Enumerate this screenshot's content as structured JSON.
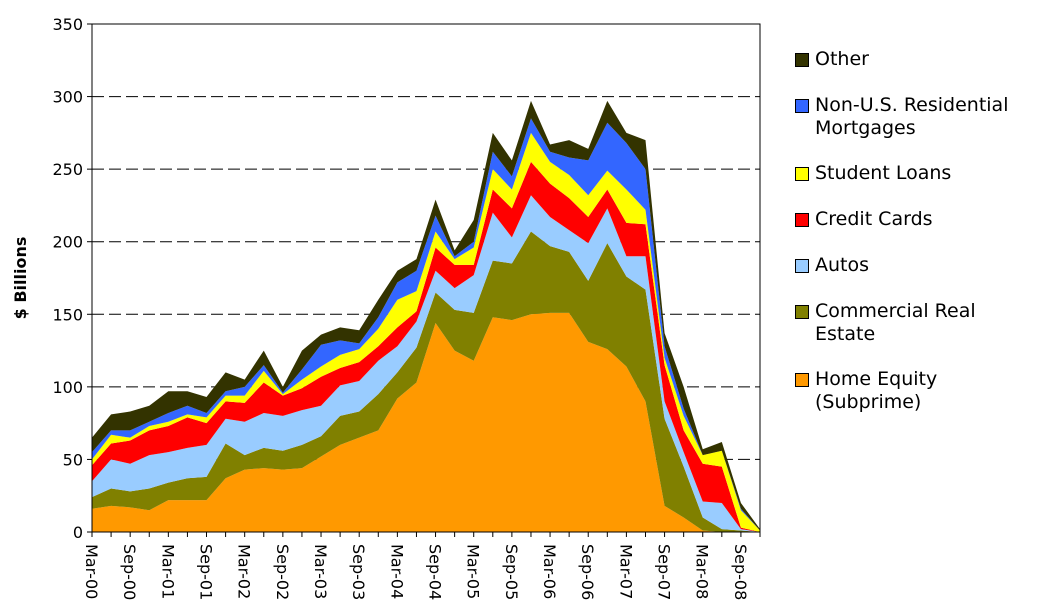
{
  "chart_data": {
    "type": "stacked-area",
    "y_label": "$ Billions",
    "categories": [
      "Mar-00",
      null,
      "Sep-00",
      null,
      "Mar-01",
      null,
      "Sep-01",
      null,
      "Mar-02",
      null,
      "Sep-02",
      null,
      "Mar-03",
      null,
      "Sep-03",
      null,
      "Mar-04",
      null,
      "Sep-04",
      null,
      "Mar-05",
      null,
      "Sep-05",
      null,
      "Mar-06",
      null,
      "Sep-06",
      null,
      "Mar-07",
      null,
      "Sep-07",
      null,
      "Mar-08",
      null,
      "Sep-08",
      null
    ],
    "ylim": [
      0,
      350
    ],
    "yticks": [
      0,
      50,
      100,
      150,
      200,
      250,
      300,
      350
    ],
    "grid": true,
    "legend": "right",
    "series": [
      {
        "name": "Home Equity (Subprime)",
        "color": "#ff9900",
        "values": [
          16,
          18,
          17,
          15,
          22,
          22,
          22,
          37,
          43,
          44,
          43,
          44,
          52,
          60,
          65,
          70,
          92,
          103,
          144,
          125,
          118,
          148,
          146,
          150,
          151,
          151,
          131,
          126,
          114,
          90,
          18,
          10,
          1,
          0,
          0,
          0
        ]
      },
      {
        "name": "Commercial Real Estate",
        "color": "#808000",
        "values": [
          8,
          12,
          11,
          15,
          12,
          15,
          16,
          24,
          10,
          14,
          13,
          16,
          14,
          20,
          18,
          25,
          18,
          24,
          21,
          28,
          33,
          39,
          39,
          57,
          46,
          42,
          42,
          73,
          62,
          77,
          60,
          35,
          9,
          2,
          1,
          0
        ]
      },
      {
        "name": "Autos",
        "color": "#99ccff",
        "values": [
          11,
          20,
          19,
          23,
          21,
          21,
          22,
          17,
          23,
          24,
          24,
          24,
          21,
          21,
          21,
          23,
          18,
          18,
          15,
          15,
          26,
          33,
          18,
          25,
          20,
          15,
          26,
          24,
          14,
          23,
          12,
          10,
          11,
          18,
          1,
          0
        ]
      },
      {
        "name": "Credit Cards",
        "color": "#ff0000",
        "values": [
          11,
          11,
          16,
          17,
          18,
          21,
          15,
          12,
          13,
          21,
          14,
          15,
          20,
          12,
          13,
          10,
          13,
          7,
          16,
          16,
          7,
          16,
          20,
          23,
          23,
          22,
          18,
          13,
          23,
          22,
          25,
          15,
          26,
          25,
          1,
          0
        ]
      },
      {
        "name": "Student Loans",
        "color": "#ffff00",
        "values": [
          4,
          6,
          2,
          3,
          3,
          2,
          4,
          4,
          5,
          8,
          1,
          6,
          7,
          9,
          9,
          12,
          19,
          14,
          11,
          4,
          12,
          14,
          13,
          20,
          15,
          16,
          15,
          13,
          23,
          10,
          5,
          10,
          6,
          11,
          12,
          1
        ]
      },
      {
        "name": "Non-U.S. Residential Mortgages",
        "color": "#3366ff",
        "values": [
          5,
          3,
          5,
          3,
          6,
          6,
          3,
          3,
          6,
          4,
          1,
          7,
          15,
          10,
          4,
          8,
          12,
          14,
          11,
          2,
          4,
          12,
          9,
          10,
          7,
          12,
          24,
          33,
          32,
          28,
          8,
          5,
          0,
          0,
          1,
          0
        ]
      },
      {
        "name": "Other",
        "color": "#333300",
        "values": [
          10,
          11,
          13,
          11,
          15,
          10,
          11,
          13,
          5,
          10,
          4,
          13,
          7,
          9,
          9,
          12,
          8,
          8,
          11,
          4,
          15,
          13,
          11,
          12,
          5,
          12,
          8,
          15,
          7,
          20,
          9,
          15,
          4,
          6,
          4,
          1
        ]
      }
    ]
  }
}
